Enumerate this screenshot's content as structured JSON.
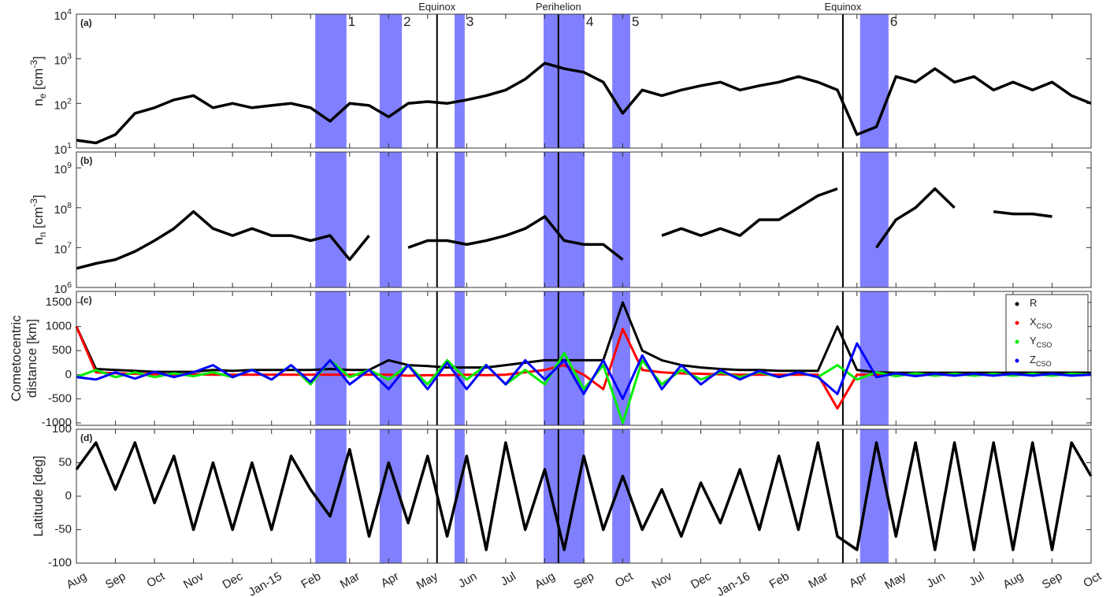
{
  "chart_data": [
    {
      "type": "line",
      "panel": "(a)",
      "ylabel": "n_{e} [cm^{-3}]",
      "log": true,
      "ylim": [
        10,
        10000
      ],
      "yticks": [
        {
          "value": 10,
          "label": "10^{1}"
        },
        {
          "value": 100,
          "label": "10^{2}"
        },
        {
          "value": 1000,
          "label": "10^{3}"
        },
        {
          "value": 10000,
          "label": "10^{4}"
        }
      ],
      "x": [
        0,
        0.5,
        1,
        1.5,
        2,
        2.5,
        3,
        3.5,
        4,
        4.5,
        5,
        5.5,
        6,
        6.5,
        7,
        7.5,
        8,
        8.5,
        9,
        9.5,
        10,
        10.5,
        11,
        11.5,
        12,
        12.5,
        13,
        13.5,
        14,
        14.5,
        15,
        15.5,
        16,
        16.5,
        17,
        17.5,
        18,
        18.5,
        19,
        19.5,
        20,
        20.5,
        21,
        21.5,
        22,
        22.5,
        23,
        23.5,
        24,
        24.5,
        25,
        25.5,
        26
      ],
      "color": "#000000",
      "values": [
        15,
        13,
        20,
        60,
        80,
        120,
        150,
        80,
        100,
        80,
        90,
        100,
        80,
        40,
        100,
        90,
        50,
        100,
        110,
        100,
        120,
        150,
        200,
        350,
        800,
        600,
        500,
        300,
        60,
        200,
        150,
        200,
        250,
        300,
        200,
        250,
        300,
        400,
        300,
        200,
        20,
        30,
        400,
        300,
        600,
        300,
        400,
        200,
        300,
        200,
        300,
        150,
        100
      ]
    },
    {
      "type": "line",
      "panel": "(b)",
      "ylabel": "n_{n} [cm^{-3}]",
      "log": true,
      "ylim": [
        1000000,
        2500000000
      ],
      "yticks": [
        {
          "value": 1000000,
          "label": "10^{6}"
        },
        {
          "value": 10000000,
          "label": "10^{7}"
        },
        {
          "value": 100000000,
          "label": "10^{8}"
        },
        {
          "value": 1000000000,
          "label": "10^{9}"
        }
      ],
      "x": [
        0,
        0.5,
        1,
        1.5,
        2,
        2.5,
        3,
        3.5,
        4,
        4.5,
        5,
        5.5,
        6,
        6.5,
        7,
        7.5,
        8,
        8.5,
        9,
        9.5,
        10,
        10.5,
        11,
        11.5,
        12,
        12.5,
        13,
        13.5,
        14,
        14.5,
        15,
        15.5,
        16,
        16.5,
        17,
        17.5,
        18,
        18.5,
        19,
        19.5,
        20,
        20.5,
        21,
        21.5,
        22,
        22.5,
        23,
        23.5,
        24,
        24.5,
        25,
        25.5,
        26
      ],
      "color": "#000000",
      "values": [
        3000000,
        4000000,
        5000000,
        8000000,
        15000000,
        30000000,
        80000000,
        30000000,
        20000000,
        30000000,
        20000000,
        20000000,
        15000000,
        20000000,
        5000000,
        20000000,
        null,
        10000000,
        15000000,
        15000000,
        12000000,
        15000000,
        20000000,
        30000000,
        60000000,
        15000000,
        12000000,
        12000000,
        5000000,
        null,
        20000000,
        30000000,
        20000000,
        30000000,
        20000000,
        50000000,
        50000000,
        100000000,
        200000000,
        300000000,
        null,
        10000000,
        50000000,
        100000000,
        300000000,
        100000000,
        null,
        80000000,
        70000000,
        70000000,
        60000000,
        null,
        10000000
      ]
    },
    {
      "type": "line",
      "panel": "(c)",
      "ylabel": [
        "Cometocentric",
        "distance [km]"
      ],
      "ylim": [
        -1050,
        1730
      ],
      "yticks": [
        -1000,
        -500,
        0,
        500,
        1000,
        1500
      ],
      "legend": "upper right",
      "x": [
        0,
        0.5,
        1,
        1.5,
        2,
        2.5,
        3,
        3.5,
        4,
        4.5,
        5,
        5.5,
        6,
        6.5,
        7,
        7.5,
        8,
        8.5,
        9,
        9.5,
        10,
        10.5,
        11,
        11.5,
        12,
        12.5,
        13,
        13.5,
        14,
        14.5,
        15,
        15.5,
        16,
        16.5,
        17,
        17.5,
        18,
        18.5,
        19,
        19.5,
        20,
        20.5,
        21,
        21.5,
        22,
        22.5,
        23,
        23.5,
        24,
        24.5,
        25,
        25.5,
        26
      ],
      "series": [
        {
          "name": "R",
          "color": "#000000",
          "values": [
            1000,
            120,
            100,
            80,
            60,
            60,
            60,
            100,
            80,
            100,
            100,
            100,
            100,
            120,
            100,
            100,
            300,
            200,
            180,
            150,
            150,
            150,
            200,
            250,
            300,
            300,
            300,
            300,
            1500,
            500,
            300,
            200,
            150,
            120,
            100,
            100,
            80,
            80,
            80,
            1000,
            100,
            50,
            40,
            40,
            40,
            40,
            40,
            40,
            40,
            40,
            40,
            40,
            40
          ]
        },
        {
          "name": "X_{CSO}",
          "color": "#ff0000",
          "values": [
            1000,
            50,
            30,
            20,
            10,
            0,
            10,
            0,
            0,
            0,
            0,
            0,
            0,
            0,
            0,
            0,
            0,
            -20,
            -10,
            -10,
            0,
            -10,
            0,
            50,
            100,
            200,
            0,
            -300,
            950,
            100,
            50,
            30,
            20,
            10,
            0,
            0,
            0,
            0,
            0,
            -700,
            0,
            0,
            0,
            0,
            0,
            0,
            0,
            0,
            0,
            0,
            0,
            0,
            0
          ]
        },
        {
          "name": "Y_{CSO}",
          "color": "#00ee00",
          "values": [
            -50,
            100,
            -50,
            50,
            -50,
            30,
            -30,
            50,
            -50,
            100,
            -100,
            200,
            -200,
            300,
            -50,
            100,
            -100,
            200,
            -200,
            300,
            -100,
            200,
            -200,
            100,
            -200,
            450,
            -300,
            200,
            -1000,
            300,
            -200,
            100,
            -100,
            50,
            -50,
            50,
            -50,
            50,
            -50,
            200,
            -100,
            50,
            -30,
            30,
            -20,
            20,
            -20,
            20,
            -20,
            20,
            -20,
            20,
            0
          ]
        },
        {
          "name": "Z_{CSO}",
          "color": "#0000ff",
          "values": [
            -50,
            -100,
            50,
            -80,
            60,
            -50,
            50,
            200,
            -50,
            100,
            -100,
            200,
            -150,
            300,
            -200,
            100,
            -300,
            200,
            -300,
            250,
            -300,
            200,
            -200,
            300,
            -100,
            300,
            -400,
            300,
            -500,
            400,
            -300,
            200,
            -200,
            100,
            -100,
            80,
            -50,
            50,
            -50,
            -400,
            650,
            -50,
            30,
            -30,
            20,
            -20,
            20,
            -20,
            20,
            -20,
            20,
            -20,
            0
          ]
        }
      ]
    },
    {
      "type": "line",
      "panel": "(d)",
      "ylabel": "Latitude [deg]",
      "ylim": [
        -100,
        100
      ],
      "yticks": [
        -100,
        -50,
        0,
        50,
        100
      ],
      "x": [
        0,
        0.5,
        1,
        1.5,
        2,
        2.5,
        3,
        3.5,
        4,
        4.5,
        5,
        5.5,
        6,
        6.5,
        7,
        7.5,
        8,
        8.5,
        9,
        9.5,
        10,
        10.5,
        11,
        11.5,
        12,
        12.5,
        13,
        13.5,
        14,
        14.5,
        15,
        15.5,
        16,
        16.5,
        17,
        17.5,
        18,
        18.5,
        19,
        19.5,
        20,
        20.5,
        21,
        21.5,
        22,
        22.5,
        23,
        23.5,
        24,
        24.5,
        25,
        25.5,
        26
      ],
      "color": "#000000",
      "values": [
        40,
        80,
        10,
        80,
        -10,
        60,
        -50,
        50,
        -50,
        50,
        -50,
        60,
        10,
        -30,
        70,
        -60,
        50,
        -40,
        60,
        -60,
        60,
        -80,
        80,
        -50,
        40,
        -80,
        60,
        -50,
        30,
        -50,
        10,
        -60,
        20,
        -40,
        40,
        -50,
        60,
        -50,
        80,
        -60,
        -80,
        80,
        -60,
        80,
        -80,
        80,
        -80,
        80,
        -80,
        80,
        -80,
        80,
        30
      ]
    }
  ],
  "x_axis": {
    "xlim": [
      0,
      26
    ],
    "xticks": [
      {
        "value": 0,
        "label": "Aug"
      },
      {
        "value": 1,
        "label": "Sep"
      },
      {
        "value": 2,
        "label": "Oct"
      },
      {
        "value": 3,
        "label": "Nov"
      },
      {
        "value": 4,
        "label": "Dec"
      },
      {
        "value": 5,
        "label": "Jan-15"
      },
      {
        "value": 6,
        "label": "Feb"
      },
      {
        "value": 7,
        "label": "Mar"
      },
      {
        "value": 8,
        "label": "Apr"
      },
      {
        "value": 9,
        "label": "May"
      },
      {
        "value": 10,
        "label": "Jun"
      },
      {
        "value": 11,
        "label": "Jul"
      },
      {
        "value": 12,
        "label": "Aug"
      },
      {
        "value": 13,
        "label": "Sep"
      },
      {
        "value": 14,
        "label": "Oct"
      },
      {
        "value": 15,
        "label": "Nov"
      },
      {
        "value": 16,
        "label": "Dec"
      },
      {
        "value": 17,
        "label": "Jan-16"
      },
      {
        "value": 18,
        "label": "Feb"
      },
      {
        "value": 19,
        "label": "Mar"
      },
      {
        "value": 20,
        "label": "Apr"
      },
      {
        "value": 21,
        "label": "May"
      },
      {
        "value": 22,
        "label": "Jun"
      },
      {
        "value": 23,
        "label": "Jul"
      },
      {
        "value": 24,
        "label": "Aug"
      },
      {
        "value": 25,
        "label": "Sep"
      },
      {
        "value": 26,
        "label": "Oct"
      }
    ]
  },
  "shading": {
    "color": "#8080ff",
    "spans": [
      [
        6.12,
        6.92
      ],
      [
        7.77,
        8.34
      ],
      [
        9.69,
        9.95
      ],
      [
        11.97,
        13.02
      ],
      [
        13.73,
        14.19
      ],
      [
        20.08,
        20.81
      ]
    ],
    "labels": [
      "1",
      "2",
      "3",
      "4",
      "5",
      "6"
    ]
  },
  "events": [
    {
      "x": 9.24,
      "label": "Equinox"
    },
    {
      "x": 12.35,
      "label": "Perihelion"
    },
    {
      "x": 19.64,
      "label": "Equinox"
    }
  ]
}
